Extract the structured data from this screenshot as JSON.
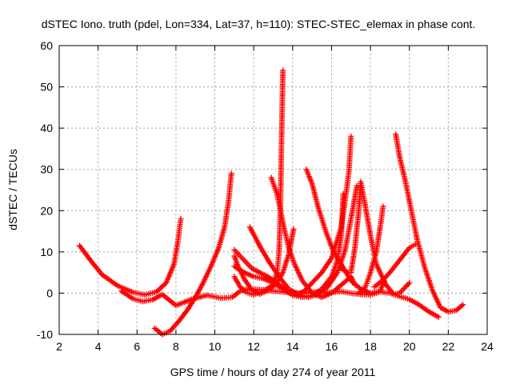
{
  "chart_data": {
    "type": "scatter",
    "title": "dSTEC Iono. truth (pdel, Lon=334, Lat=37, h=110): STEC-STEC_elemax in phase cont.",
    "xlabel": "GPS time / hours of day 274 of year 2011",
    "ylabel": "dSTEC  / TECUs",
    "xlim": [
      2,
      24
    ],
    "ylim": [
      -10,
      60
    ],
    "xticks": [
      "2",
      "4",
      "6",
      "8",
      "10",
      "12",
      "14",
      "16",
      "18",
      "20",
      "22",
      "24"
    ],
    "yticks": [
      "-10",
      "0",
      "10",
      "20",
      "30",
      "40",
      "50",
      "60"
    ],
    "grid": true,
    "marker": "plus",
    "colors": {
      "series": "#ff0000",
      "grid": "#a0a0a0",
      "axis": "#000000"
    },
    "series": [
      {
        "points": [
          [
            3.05,
            11.5
          ],
          [
            3.6,
            8.0
          ],
          [
            4.2,
            4.5
          ],
          [
            5.0,
            1.8
          ],
          [
            5.8,
            0.2
          ],
          [
            6.4,
            -0.4
          ],
          [
            7.0,
            0.3
          ],
          [
            7.5,
            2.5
          ],
          [
            7.9,
            7.0
          ],
          [
            8.1,
            12.5
          ],
          [
            8.25,
            18.0
          ]
        ]
      },
      {
        "points": [
          [
            5.2,
            0.5
          ],
          [
            5.8,
            -1.4
          ],
          [
            6.3,
            -2.0
          ],
          [
            6.8,
            -1.6
          ],
          [
            7.3,
            -0.3
          ],
          [
            8.0,
            -3.0
          ],
          [
            8.8,
            -1.5
          ],
          [
            9.6,
            -0.5
          ],
          [
            10.3,
            -1.2
          ],
          [
            10.9,
            -1.0
          ],
          [
            11.3,
            0.5
          ],
          [
            11.7,
            1.0
          ],
          [
            12.5,
            0.8
          ],
          [
            13.0,
            0.5
          ],
          [
            13.5,
            0.3
          ],
          [
            14.0,
            0.1
          ],
          [
            14.5,
            0.0
          ],
          [
            15.3,
            0.3
          ],
          [
            16.0,
            0.2
          ],
          [
            16.5,
            0.4
          ],
          [
            17.0,
            0.0
          ],
          [
            17.5,
            -0.3
          ],
          [
            18.0,
            -0.4
          ],
          [
            18.5,
            0.3
          ],
          [
            19.0,
            0.0
          ],
          [
            19.5,
            -0.8
          ],
          [
            20.0,
            -1.5
          ],
          [
            20.5,
            -2.8
          ],
          [
            21.0,
            -4.5
          ],
          [
            21.5,
            -5.8
          ]
        ]
      },
      {
        "points": [
          [
            6.9,
            -8.5
          ],
          [
            7.3,
            -10.0
          ],
          [
            7.7,
            -9.2
          ],
          [
            8.2,
            -6.5
          ],
          [
            8.6,
            -4.0
          ],
          [
            9.0,
            -1.0
          ],
          [
            9.4,
            2.5
          ],
          [
            9.8,
            6.5
          ],
          [
            10.2,
            11.0
          ],
          [
            10.5,
            16.0
          ],
          [
            10.7,
            22.0
          ],
          [
            10.85,
            29.0
          ]
        ]
      },
      {
        "points": [
          [
            11.0,
            9.0
          ],
          [
            11.2,
            6.5
          ],
          [
            11.5,
            3.5
          ],
          [
            11.9,
            0.8
          ],
          [
            12.3,
            -0.2
          ],
          [
            12.8,
            0.8
          ],
          [
            13.2,
            2.5
          ],
          [
            13.5,
            5.0
          ],
          [
            13.8,
            9.5
          ],
          [
            14.05,
            15.5
          ]
        ]
      },
      {
        "points": [
          [
            11.0,
            4.0
          ],
          [
            11.3,
            1.5
          ],
          [
            11.6,
            0.2
          ],
          [
            12.0,
            -0.4
          ],
          [
            12.5,
            0.5
          ],
          [
            13.0,
            2.0
          ],
          [
            13.2,
            5.0
          ],
          [
            13.3,
            10.0
          ],
          [
            13.37,
            20.0
          ],
          [
            13.42,
            35.0
          ],
          [
            13.5,
            54.0
          ]
        ]
      },
      {
        "points": [
          [
            11.0,
            6.5
          ],
          [
            11.5,
            5.0
          ],
          [
            12.0,
            4.0
          ],
          [
            12.5,
            3.5
          ],
          [
            13.0,
            2.5
          ],
          [
            13.5,
            1.0
          ],
          [
            14.0,
            -0.5
          ],
          [
            14.5,
            -1.0
          ],
          [
            15.0,
            -0.5
          ],
          [
            15.5,
            1.0
          ],
          [
            16.0,
            4.0
          ],
          [
            16.3,
            8.0
          ],
          [
            16.5,
            14.0
          ],
          [
            16.6,
            24.0
          ]
        ]
      },
      {
        "points": [
          [
            11.0,
            10.5
          ],
          [
            11.3,
            9.0
          ],
          [
            11.6,
            7.5
          ],
          [
            11.9,
            6.0
          ],
          [
            12.3,
            5.0
          ],
          [
            12.8,
            3.8
          ],
          [
            13.3,
            2.0
          ],
          [
            13.8,
            0.5
          ],
          [
            14.2,
            -0.5
          ],
          [
            14.6,
            0.5
          ],
          [
            15.0,
            2.5
          ],
          [
            15.5,
            5.0
          ],
          [
            16.0,
            8.5
          ],
          [
            16.5,
            16.0
          ],
          [
            16.8,
            26.0
          ],
          [
            16.9,
            30.0
          ],
          [
            17.0,
            38.0
          ]
        ]
      },
      {
        "points": [
          [
            11.8,
            16.0
          ],
          [
            12.3,
            11.5
          ],
          [
            12.8,
            7.5
          ],
          [
            13.3,
            4.0
          ],
          [
            13.8,
            1.0
          ],
          [
            14.3,
            -0.3
          ],
          [
            14.8,
            -1.0
          ],
          [
            15.3,
            -0.3
          ],
          [
            15.8,
            1.5
          ],
          [
            16.3,
            5.0
          ],
          [
            16.7,
            10.5
          ],
          [
            17.0,
            18.0
          ],
          [
            17.3,
            26.0
          ]
        ]
      },
      {
        "points": [
          [
            12.9,
            28.0
          ],
          [
            13.2,
            24.0
          ],
          [
            13.5,
            17.0
          ],
          [
            13.8,
            11.0
          ],
          [
            14.1,
            7.0
          ],
          [
            14.5,
            3.0
          ],
          [
            15.0,
            0.0
          ],
          [
            15.5,
            -1.0
          ],
          [
            16.0,
            0.0
          ],
          [
            16.5,
            2.0
          ],
          [
            17.0,
            4.0
          ],
          [
            17.2,
            2.0
          ]
        ]
      },
      {
        "points": [
          [
            14.7,
            30.0
          ],
          [
            15.0,
            26.5
          ],
          [
            15.3,
            21.0
          ],
          [
            15.7,
            15.0
          ],
          [
            16.1,
            10.0
          ],
          [
            16.5,
            7.0
          ],
          [
            17.0,
            3.0
          ],
          [
            17.5,
            1.0
          ],
          [
            18.0,
            0.0
          ],
          [
            18.5,
            0.5
          ],
          [
            18.7,
            3.0
          ]
        ]
      },
      {
        "points": [
          [
            16.5,
            6.0
          ],
          [
            16.8,
            5.0
          ],
          [
            17.0,
            5.0
          ],
          [
            17.2,
            11.0
          ],
          [
            17.4,
            20.0
          ],
          [
            17.5,
            27.0
          ],
          [
            17.7,
            22.0
          ],
          [
            18.0,
            14.0
          ],
          [
            18.3,
            7.0
          ],
          [
            18.8,
            2.0
          ],
          [
            19.2,
            -0.3
          ],
          [
            19.5,
            0.0
          ],
          [
            19.8,
            1.5
          ],
          [
            20.0,
            2.5
          ]
        ]
      },
      {
        "points": [
          [
            17.4,
            0.0
          ],
          [
            17.7,
            1.0
          ],
          [
            18.0,
            5.0
          ],
          [
            18.3,
            10.0
          ],
          [
            18.5,
            16.0
          ],
          [
            18.65,
            21.0
          ]
        ]
      },
      {
        "points": [
          [
            19.3,
            38.5
          ],
          [
            19.5,
            33.0
          ],
          [
            19.8,
            27.0
          ],
          [
            20.1,
            20.0
          ],
          [
            20.4,
            13.0
          ],
          [
            20.8,
            6.0
          ],
          [
            21.2,
            0.5
          ],
          [
            21.6,
            -3.5
          ],
          [
            22.0,
            -4.5
          ],
          [
            22.4,
            -4.2
          ],
          [
            22.75,
            -2.8
          ]
        ]
      },
      {
        "points": [
          [
            18.2,
            1.5
          ],
          [
            18.6,
            3.0
          ],
          [
            19.0,
            5.0
          ],
          [
            19.5,
            8.0
          ],
          [
            20.0,
            11.0
          ],
          [
            20.3,
            11.8
          ]
        ]
      }
    ]
  }
}
